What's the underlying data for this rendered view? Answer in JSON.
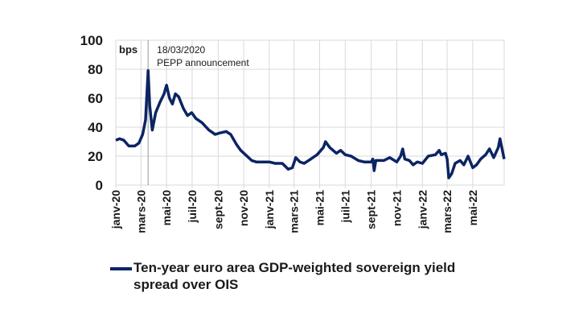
{
  "chart_data": {
    "type": "line",
    "unit_label": "bps",
    "ylim": [
      0,
      100
    ],
    "yticks": [
      0,
      20,
      40,
      60,
      80,
      100
    ],
    "xlim": [
      "2020-01-01",
      "2022-07-15"
    ],
    "xticks": [
      {
        "date": "2020-01-01",
        "label": "janv-20"
      },
      {
        "date": "2020-03-01",
        "label": "mars-20"
      },
      {
        "date": "2020-05-01",
        "label": "mai-20"
      },
      {
        "date": "2020-07-01",
        "label": "juil-20"
      },
      {
        "date": "2020-09-01",
        "label": "sept-20"
      },
      {
        "date": "2020-11-01",
        "label": "nov-20"
      },
      {
        "date": "2021-01-01",
        "label": "janv-21"
      },
      {
        "date": "2021-03-01",
        "label": "mars-21"
      },
      {
        "date": "2021-05-01",
        "label": "mai-21"
      },
      {
        "date": "2021-07-01",
        "label": "juil-21"
      },
      {
        "date": "2021-09-01",
        "label": "sept-21"
      },
      {
        "date": "2021-11-01",
        "label": "nov-21"
      },
      {
        "date": "2022-01-01",
        "label": "janv-22"
      },
      {
        "date": "2022-03-01",
        "label": "mars-22"
      },
      {
        "date": "2022-05-01",
        "label": "mai-22"
      }
    ],
    "grid": true,
    "legend_position": "bottom",
    "annotation": {
      "date": "2020-03-18",
      "line1": "18/03/2020",
      "line2": "PEPP announcement"
    },
    "series": [
      {
        "name": "Ten-year euro area GDP-weighted sovereign yield spread over OIS",
        "color": "#0b2463",
        "points": [
          [
            "2020-01-01",
            31
          ],
          [
            "2020-01-10",
            32
          ],
          [
            "2020-01-20",
            31
          ],
          [
            "2020-02-01",
            27
          ],
          [
            "2020-02-15",
            27
          ],
          [
            "2020-02-25",
            29
          ],
          [
            "2020-03-05",
            35
          ],
          [
            "2020-03-12",
            45
          ],
          [
            "2020-03-18",
            79
          ],
          [
            "2020-03-22",
            55
          ],
          [
            "2020-03-28",
            38
          ],
          [
            "2020-04-05",
            50
          ],
          [
            "2020-04-15",
            57
          ],
          [
            "2020-04-25",
            63
          ],
          [
            "2020-05-01",
            69
          ],
          [
            "2020-05-08",
            60
          ],
          [
            "2020-05-15",
            56
          ],
          [
            "2020-05-22",
            63
          ],
          [
            "2020-05-30",
            61
          ],
          [
            "2020-06-10",
            53
          ],
          [
            "2020-06-20",
            48
          ],
          [
            "2020-06-30",
            50
          ],
          [
            "2020-07-10",
            46
          ],
          [
            "2020-07-25",
            43
          ],
          [
            "2020-08-10",
            38
          ],
          [
            "2020-08-25",
            35
          ],
          [
            "2020-09-05",
            36
          ],
          [
            "2020-09-20",
            37
          ],
          [
            "2020-10-01",
            35
          ],
          [
            "2020-10-15",
            28
          ],
          [
            "2020-10-25",
            24
          ],
          [
            "2020-11-05",
            21
          ],
          [
            "2020-11-20",
            17
          ],
          [
            "2020-12-01",
            16
          ],
          [
            "2020-12-15",
            16
          ],
          [
            "2021-01-01",
            16
          ],
          [
            "2021-01-15",
            15
          ],
          [
            "2021-02-01",
            15
          ],
          [
            "2021-02-15",
            11
          ],
          [
            "2021-02-25",
            12
          ],
          [
            "2021-03-05",
            19
          ],
          [
            "2021-03-15",
            16
          ],
          [
            "2021-03-25",
            15
          ],
          [
            "2021-04-10",
            18
          ],
          [
            "2021-04-25",
            21
          ],
          [
            "2021-05-10",
            26
          ],
          [
            "2021-05-15",
            30
          ],
          [
            "2021-05-25",
            26
          ],
          [
            "2021-06-10",
            22
          ],
          [
            "2021-06-20",
            24
          ],
          [
            "2021-07-01",
            21
          ],
          [
            "2021-07-15",
            20
          ],
          [
            "2021-08-01",
            17
          ],
          [
            "2021-08-15",
            16
          ],
          [
            "2021-09-01",
            16
          ],
          [
            "2021-09-05",
            18
          ],
          [
            "2021-09-08",
            10
          ],
          [
            "2021-09-12",
            17
          ],
          [
            "2021-10-01",
            17
          ],
          [
            "2021-10-15",
            19
          ],
          [
            "2021-11-01",
            16
          ],
          [
            "2021-11-10",
            20
          ],
          [
            "2021-11-15",
            25
          ],
          [
            "2021-11-20",
            18
          ],
          [
            "2021-12-01",
            17
          ],
          [
            "2021-12-10",
            14
          ],
          [
            "2021-12-20",
            16
          ],
          [
            "2022-01-01",
            15
          ],
          [
            "2022-01-15",
            20
          ],
          [
            "2022-02-01",
            21
          ],
          [
            "2022-02-10",
            24
          ],
          [
            "2022-02-15",
            21
          ],
          [
            "2022-02-25",
            22
          ],
          [
            "2022-03-01",
            18
          ],
          [
            "2022-03-05",
            5
          ],
          [
            "2022-03-12",
            8
          ],
          [
            "2022-03-20",
            15
          ],
          [
            "2022-04-01",
            17
          ],
          [
            "2022-04-10",
            14
          ],
          [
            "2022-04-20",
            20
          ],
          [
            "2022-05-01",
            12
          ],
          [
            "2022-05-10",
            14
          ],
          [
            "2022-05-20",
            18
          ],
          [
            "2022-06-01",
            21
          ],
          [
            "2022-06-10",
            25
          ],
          [
            "2022-06-20",
            19
          ],
          [
            "2022-07-01",
            26
          ],
          [
            "2022-07-05",
            32
          ],
          [
            "2022-07-10",
            25
          ],
          [
            "2022-07-15",
            18
          ]
        ]
      }
    ]
  }
}
